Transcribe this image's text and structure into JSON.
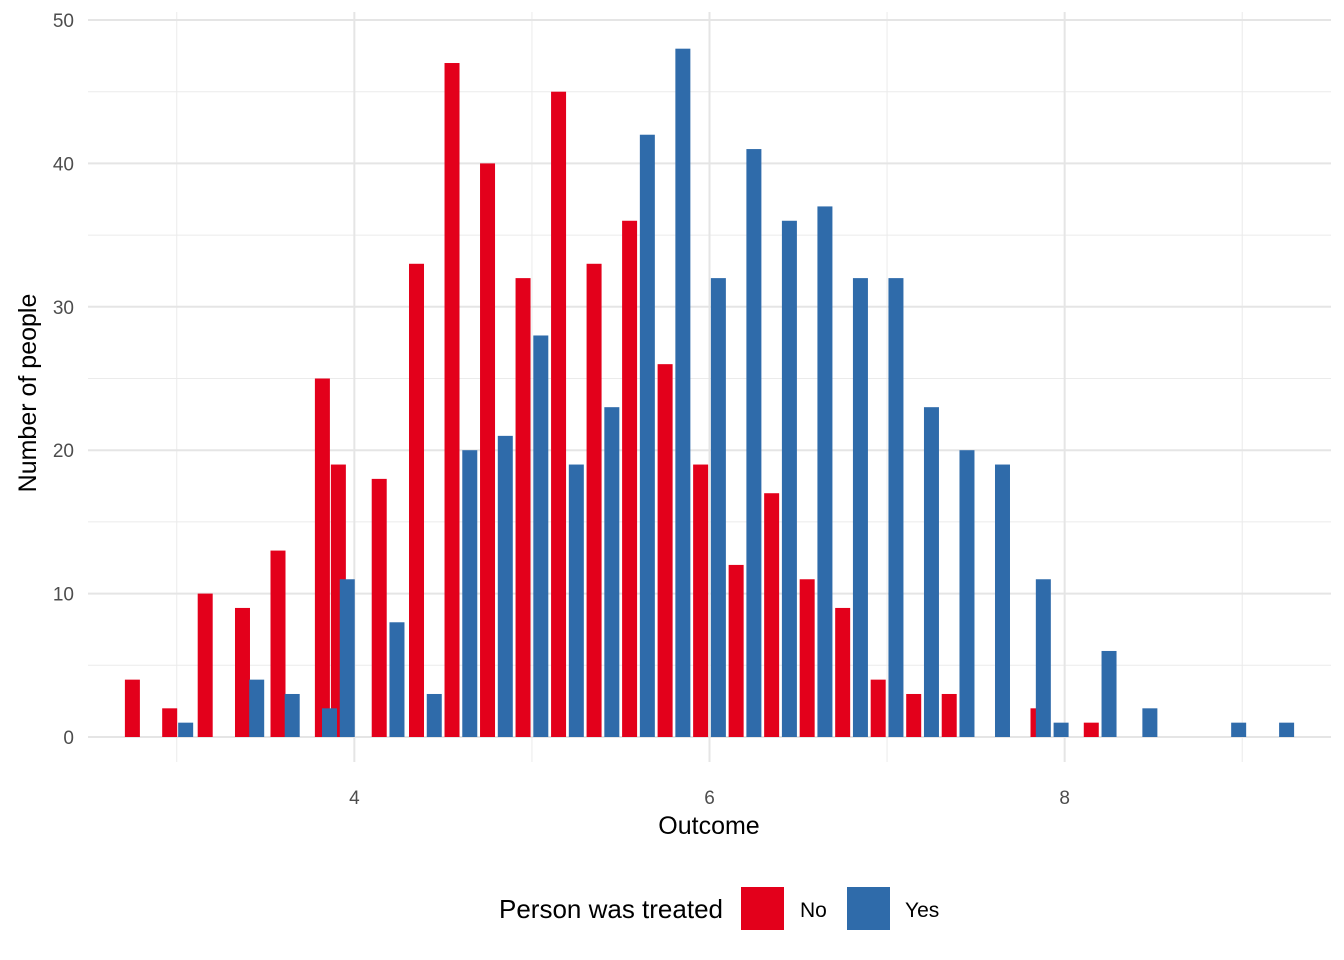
{
  "chart_data": {
    "type": "bar",
    "title": "",
    "xlabel": "Outcome",
    "ylabel": "Number of people",
    "xlim": [
      2.5,
      9.5
    ],
    "ylim": [
      0,
      50
    ],
    "x_ticks": [
      4,
      6,
      8
    ],
    "y_ticks": [
      0,
      10,
      20,
      30,
      40,
      50
    ],
    "grid": true,
    "legend": {
      "title": "Person was treated",
      "placement": "bottom",
      "entries": [
        {
          "label": "No",
          "color": "#e3001b"
        },
        {
          "label": "Yes",
          "color": "#2f6baa"
        }
      ]
    },
    "series": [
      {
        "name": "No",
        "color": "#e3001b",
        "points": [
          {
            "x": 2.75,
            "y": 4
          },
          {
            "x": 2.96,
            "y": 2
          },
          {
            "x": 3.16,
            "y": 10
          },
          {
            "x": 3.37,
            "y": 9
          },
          {
            "x": 3.57,
            "y": 13
          },
          {
            "x": 3.82,
            "y": 25
          },
          {
            "x": 3.91,
            "y": 19
          },
          {
            "x": 4.14,
            "y": 18
          },
          {
            "x": 4.35,
            "y": 33
          },
          {
            "x": 4.55,
            "y": 47
          },
          {
            "x": 4.75,
            "y": 40
          },
          {
            "x": 4.95,
            "y": 32
          },
          {
            "x": 5.15,
            "y": 45
          },
          {
            "x": 5.35,
            "y": 33
          },
          {
            "x": 5.55,
            "y": 36
          },
          {
            "x": 5.75,
            "y": 26
          },
          {
            "x": 5.95,
            "y": 19
          },
          {
            "x": 6.15,
            "y": 12
          },
          {
            "x": 6.35,
            "y": 17
          },
          {
            "x": 6.55,
            "y": 11
          },
          {
            "x": 6.75,
            "y": 9
          },
          {
            "x": 6.95,
            "y": 4
          },
          {
            "x": 7.15,
            "y": 3
          },
          {
            "x": 7.35,
            "y": 3
          },
          {
            "x": 7.85,
            "y": 2
          },
          {
            "x": 8.15,
            "y": 1
          }
        ]
      },
      {
        "name": "Yes",
        "color": "#2f6baa",
        "points": [
          {
            "x": 3.05,
            "y": 1
          },
          {
            "x": 3.45,
            "y": 4
          },
          {
            "x": 3.65,
            "y": 3
          },
          {
            "x": 3.86,
            "y": 2
          },
          {
            "x": 3.96,
            "y": 11
          },
          {
            "x": 4.24,
            "y": 8
          },
          {
            "x": 4.45,
            "y": 3
          },
          {
            "x": 4.65,
            "y": 20
          },
          {
            "x": 4.85,
            "y": 21
          },
          {
            "x": 5.05,
            "y": 28
          },
          {
            "x": 5.25,
            "y": 19
          },
          {
            "x": 5.45,
            "y": 23
          },
          {
            "x": 5.65,
            "y": 42
          },
          {
            "x": 5.85,
            "y": 48
          },
          {
            "x": 6.05,
            "y": 32
          },
          {
            "x": 6.25,
            "y": 41
          },
          {
            "x": 6.45,
            "y": 36
          },
          {
            "x": 6.65,
            "y": 37
          },
          {
            "x": 6.85,
            "y": 32
          },
          {
            "x": 7.05,
            "y": 32
          },
          {
            "x": 7.25,
            "y": 23
          },
          {
            "x": 7.45,
            "y": 20
          },
          {
            "x": 7.65,
            "y": 19
          },
          {
            "x": 7.88,
            "y": 11
          },
          {
            "x": 7.98,
            "y": 1
          },
          {
            "x": 8.25,
            "y": 6
          },
          {
            "x": 8.48,
            "y": 2
          },
          {
            "x": 8.98,
            "y": 1
          },
          {
            "x": 9.25,
            "y": 1
          }
        ]
      }
    ]
  }
}
